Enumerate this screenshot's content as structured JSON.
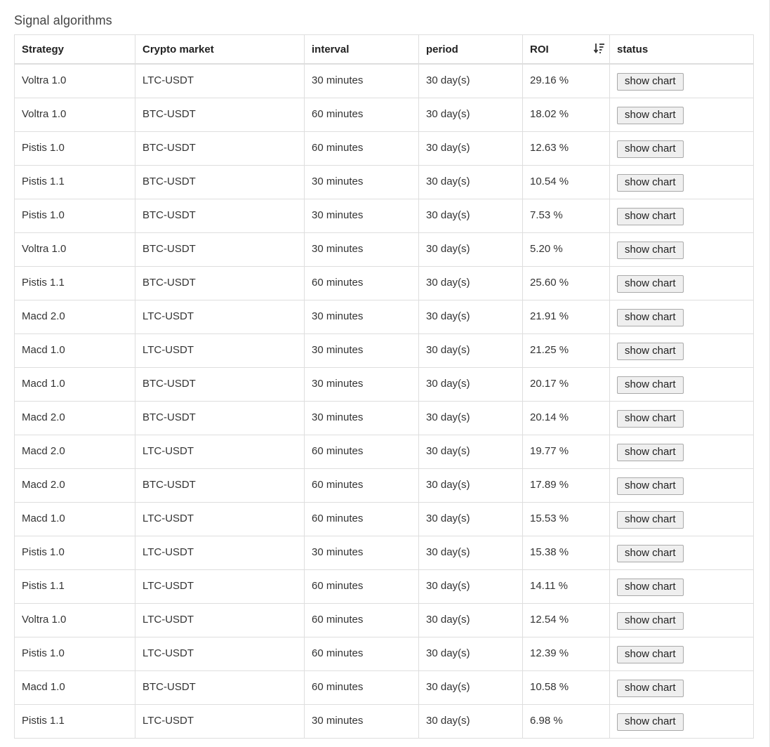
{
  "panel": {
    "title": "Signal algorithms"
  },
  "table": {
    "headers": {
      "strategy": "Strategy",
      "market": "Crypto market",
      "interval": "interval",
      "period": "period",
      "roi": "ROI",
      "status": "status"
    },
    "sort_icon": "sort-descending-icon",
    "button_label": "show chart",
    "rows": [
      {
        "strategy": "Voltra 1.0",
        "market": "LTC-USDT",
        "interval": "30 minutes",
        "period": "30 day(s)",
        "roi": "29.16 %"
      },
      {
        "strategy": "Voltra 1.0",
        "market": "BTC-USDT",
        "interval": "60 minutes",
        "period": "30 day(s)",
        "roi": "18.02 %"
      },
      {
        "strategy": "Pistis 1.0",
        "market": "BTC-USDT",
        "interval": "60 minutes",
        "period": "30 day(s)",
        "roi": "12.63 %"
      },
      {
        "strategy": "Pistis 1.1",
        "market": "BTC-USDT",
        "interval": "30 minutes",
        "period": "30 day(s)",
        "roi": "10.54 %"
      },
      {
        "strategy": "Pistis 1.0",
        "market": "BTC-USDT",
        "interval": "30 minutes",
        "period": "30 day(s)",
        "roi": "7.53 %"
      },
      {
        "strategy": "Voltra 1.0",
        "market": "BTC-USDT",
        "interval": "30 minutes",
        "period": "30 day(s)",
        "roi": "5.20 %"
      },
      {
        "strategy": "Pistis 1.1",
        "market": "BTC-USDT",
        "interval": "60 minutes",
        "period": "30 day(s)",
        "roi": "25.60 %"
      },
      {
        "strategy": "Macd 2.0",
        "market": "LTC-USDT",
        "interval": "30 minutes",
        "period": "30 day(s)",
        "roi": "21.91 %"
      },
      {
        "strategy": "Macd 1.0",
        "market": "LTC-USDT",
        "interval": "30 minutes",
        "period": "30 day(s)",
        "roi": "21.25 %"
      },
      {
        "strategy": "Macd 1.0",
        "market": "BTC-USDT",
        "interval": "30 minutes",
        "period": "30 day(s)",
        "roi": "20.17 %"
      },
      {
        "strategy": "Macd 2.0",
        "market": "BTC-USDT",
        "interval": "30 minutes",
        "period": "30 day(s)",
        "roi": "20.14 %"
      },
      {
        "strategy": "Macd 2.0",
        "market": "LTC-USDT",
        "interval": "60 minutes",
        "period": "30 day(s)",
        "roi": "19.77 %"
      },
      {
        "strategy": "Macd 2.0",
        "market": "BTC-USDT",
        "interval": "60 minutes",
        "period": "30 day(s)",
        "roi": "17.89 %"
      },
      {
        "strategy": "Macd 1.0",
        "market": "LTC-USDT",
        "interval": "60 minutes",
        "period": "30 day(s)",
        "roi": "15.53 %"
      },
      {
        "strategy": "Pistis 1.0",
        "market": "LTC-USDT",
        "interval": "30 minutes",
        "period": "30 day(s)",
        "roi": "15.38 %"
      },
      {
        "strategy": "Pistis 1.1",
        "market": "LTC-USDT",
        "interval": "60 minutes",
        "period": "30 day(s)",
        "roi": "14.11 %"
      },
      {
        "strategy": "Voltra 1.0",
        "market": "LTC-USDT",
        "interval": "60 minutes",
        "period": "30 day(s)",
        "roi": "12.54 %"
      },
      {
        "strategy": "Pistis 1.0",
        "market": "LTC-USDT",
        "interval": "60 minutes",
        "period": "30 day(s)",
        "roi": "12.39 %"
      },
      {
        "strategy": "Macd 1.0",
        "market": "BTC-USDT",
        "interval": "60 minutes",
        "period": "30 day(s)",
        "roi": "10.58 %"
      },
      {
        "strategy": "Pistis 1.1",
        "market": "LTC-USDT",
        "interval": "30 minutes",
        "period": "30 day(s)",
        "roi": "6.98 %"
      }
    ]
  }
}
